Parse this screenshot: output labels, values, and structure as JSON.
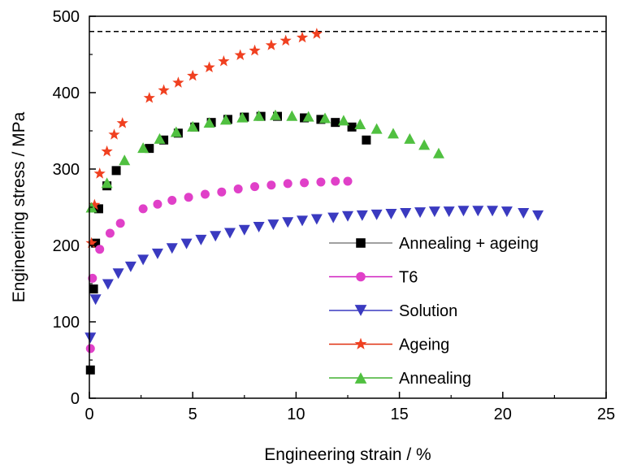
{
  "chart_data": {
    "type": "scatter",
    "xlabel": "Engineering strain / %",
    "ylabel": "Engineering stress / MPa",
    "xlim": [
      0,
      25
    ],
    "ylim": [
      0,
      500
    ],
    "x_ticks": [
      "0",
      "5",
      "10",
      "15",
      "20",
      "25"
    ],
    "y_ticks": [
      "0",
      "100",
      "200",
      "300",
      "400",
      "500"
    ],
    "grid": false,
    "legend_position": "bottom-right",
    "reference_line": {
      "y": 480,
      "style": "dashed",
      "color": "#000000"
    },
    "series": [
      {
        "name": "Annealing + ageing",
        "marker": "square",
        "color": "#000000",
        "line_color": "#808080",
        "x": [
          0.05,
          0.2,
          0.3,
          0.45,
          0.85,
          1.3,
          2.9,
          3.6,
          4.3,
          5.1,
          5.9,
          6.7,
          7.5,
          8.3,
          9.1,
          10.4,
          11.2,
          11.9,
          12.7,
          13.4
        ],
        "y": [
          37,
          143,
          203,
          248,
          278,
          298,
          327,
          338,
          347,
          355,
          361,
          365,
          368,
          369,
          369,
          367,
          365,
          361,
          355,
          338
        ]
      },
      {
        "name": "T6",
        "marker": "circle",
        "color": "#e040c8",
        "line_color": "#d020c0",
        "x": [
          0.05,
          0.15,
          0.5,
          1.0,
          1.5,
          2.6,
          3.3,
          4.0,
          4.8,
          5.6,
          6.4,
          7.2,
          8.0,
          8.8,
          9.6,
          10.4,
          11.2,
          11.9,
          12.5
        ],
        "y": [
          65,
          157,
          195,
          216,
          229,
          248,
          254,
          259,
          263,
          267,
          270,
          274,
          277,
          279,
          281,
          282,
          283,
          284,
          284
        ]
      },
      {
        "name": "Solution",
        "marker": "triangle-down",
        "color": "#3a3ac0",
        "line_color": "#3a3ac0",
        "x": [
          0.05,
          0.3,
          0.9,
          1.4,
          2.0,
          2.6,
          3.3,
          4.0,
          4.7,
          5.4,
          6.1,
          6.8,
          7.5,
          8.2,
          8.9,
          9.6,
          10.3,
          11.0,
          11.8,
          12.5,
          13.2,
          13.9,
          14.6,
          15.3,
          16.0,
          16.7,
          17.4,
          18.1,
          18.8,
          19.5,
          20.2,
          21.0,
          21.7
        ],
        "y": [
          79,
          129,
          149,
          163,
          172,
          181,
          189,
          196,
          202,
          207,
          212,
          216,
          220,
          224,
          227,
          230,
          232,
          234,
          236,
          238,
          239,
          240,
          241,
          242,
          243,
          244,
          244,
          245,
          245,
          245,
          244,
          242,
          239
        ]
      },
      {
        "name": "Ageing",
        "marker": "star",
        "color": "#f04020",
        "line_color": "#e03010",
        "x": [
          0.1,
          0.25,
          0.5,
          0.85,
          1.2,
          1.6,
          2.9,
          3.6,
          4.3,
          5.0,
          5.8,
          6.5,
          7.3,
          8.0,
          8.8,
          9.5,
          10.3,
          11.0
        ],
        "y": [
          203,
          253,
          294,
          323,
          345,
          360,
          393,
          403,
          413,
          422,
          433,
          441,
          449,
          455,
          462,
          468,
          472,
          477
        ]
      },
      {
        "name": "Annealing",
        "marker": "triangle-up",
        "color": "#50c040",
        "line_color": "#40b030",
        "x": [
          0.1,
          0.85,
          1.7,
          2.6,
          3.4,
          4.2,
          5.0,
          5.8,
          6.6,
          7.4,
          8.2,
          9.0,
          9.8,
          10.6,
          11.4,
          12.3,
          13.1,
          13.9,
          14.7,
          15.5,
          16.2,
          16.9
        ],
        "y": [
          250,
          282,
          312,
          328,
          340,
          349,
          356,
          361,
          365,
          368,
          370,
          371,
          370,
          369,
          367,
          364,
          359,
          353,
          347,
          340,
          332,
          321
        ]
      }
    ]
  }
}
